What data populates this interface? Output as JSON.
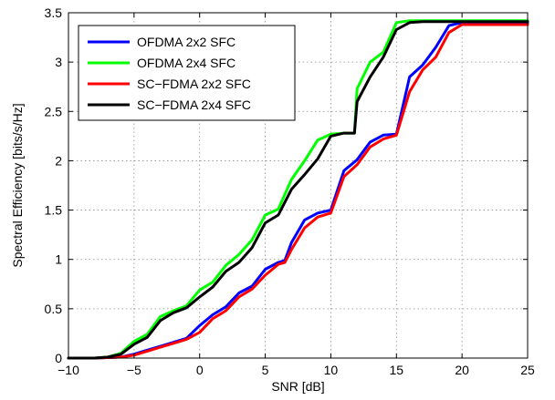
{
  "chart_data": {
    "type": "line",
    "title": "",
    "xlabel": "SNR [dB]",
    "ylabel": "Spectral Efficiency [bits/s/Hz]",
    "xlim": [
      -10,
      25
    ],
    "ylim": [
      0,
      3.5
    ],
    "xticks": [
      -10,
      -5,
      0,
      5,
      10,
      15,
      20,
      25
    ],
    "yticks": [
      0,
      0.5,
      1,
      1.5,
      2,
      2.5,
      3,
      3.5
    ],
    "xtick_labels": [
      "−10",
      "−5",
      "0",
      "5",
      "10",
      "15",
      "20",
      "25"
    ],
    "ytick_labels": [
      "0",
      "0.5",
      "1",
      "1.5",
      "2",
      "2.5",
      "3",
      "3.5"
    ],
    "grid": true,
    "legend_position": "top-left",
    "series": [
      {
        "name": "OFDMA 2x2 SFC",
        "color": "#0000ff",
        "x": [
          -10,
          -8,
          -6,
          -5,
          -4,
          -3,
          -2,
          -1,
          0,
          1,
          2,
          3,
          4,
          5,
          6,
          6.5,
          7,
          8,
          9,
          10,
          11,
          12,
          13,
          14,
          15,
          16,
          17,
          18,
          19,
          20,
          25
        ],
        "y": [
          0,
          0,
          0.01,
          0.04,
          0.08,
          0.12,
          0.16,
          0.2,
          0.33,
          0.44,
          0.52,
          0.66,
          0.73,
          0.9,
          0.97,
          0.99,
          1.17,
          1.4,
          1.47,
          1.5,
          1.9,
          2.01,
          2.19,
          2.26,
          2.27,
          2.85,
          2.97,
          3.15,
          3.37,
          3.4,
          3.4
        ]
      },
      {
        "name": "OFDMA 2x4 SFC",
        "color": "#00ff00",
        "x": [
          -10,
          -8,
          -7,
          -6,
          -5,
          -4,
          -3,
          -2,
          -1,
          0,
          1,
          2,
          3,
          4,
          5,
          6,
          7,
          8,
          9,
          10,
          11,
          11.8,
          12,
          13,
          14,
          15,
          16,
          17,
          18,
          20,
          25
        ],
        "y": [
          0,
          0,
          0.01,
          0.05,
          0.17,
          0.24,
          0.42,
          0.48,
          0.53,
          0.69,
          0.77,
          0.94,
          1.05,
          1.2,
          1.45,
          1.51,
          1.81,
          2.0,
          2.21,
          2.27,
          2.28,
          2.28,
          2.73,
          3.0,
          3.1,
          3.4,
          3.42,
          3.42,
          3.42,
          3.42,
          3.42
        ]
      },
      {
        "name": "SC−FDMA 2x2 SFC",
        "color": "#ff0000",
        "x": [
          -10,
          -8,
          -6,
          -5,
          -4,
          -3,
          -2,
          -1,
          0,
          1,
          2,
          3,
          4,
          5,
          6,
          6.5,
          7,
          8,
          9,
          10,
          11,
          12,
          13,
          14,
          15,
          16,
          17,
          18,
          19,
          20,
          25
        ],
        "y": [
          0,
          0,
          0.01,
          0.03,
          0.07,
          0.11,
          0.15,
          0.19,
          0.26,
          0.4,
          0.48,
          0.62,
          0.7,
          0.84,
          0.95,
          0.97,
          1.1,
          1.32,
          1.43,
          1.47,
          1.84,
          1.96,
          2.14,
          2.22,
          2.26,
          2.7,
          2.92,
          3.05,
          3.3,
          3.38,
          3.38
        ]
      },
      {
        "name": "SC−FDMA 2x4 SFC",
        "color": "#000000",
        "x": [
          -10,
          -8,
          -7,
          -6,
          -5,
          -4,
          -3,
          -2,
          -1,
          0,
          1,
          2,
          3,
          4,
          5,
          6,
          7,
          8,
          9,
          10,
          11,
          11.8,
          12,
          13,
          14,
          15,
          16,
          17,
          18,
          20,
          25
        ],
        "y": [
          0,
          0,
          0.01,
          0.04,
          0.14,
          0.21,
          0.38,
          0.46,
          0.51,
          0.62,
          0.72,
          0.88,
          0.97,
          1.12,
          1.37,
          1.45,
          1.71,
          1.86,
          2.02,
          2.25,
          2.28,
          2.28,
          2.6,
          2.85,
          3.05,
          3.33,
          3.4,
          3.41,
          3.41,
          3.41,
          3.41
        ]
      }
    ]
  }
}
